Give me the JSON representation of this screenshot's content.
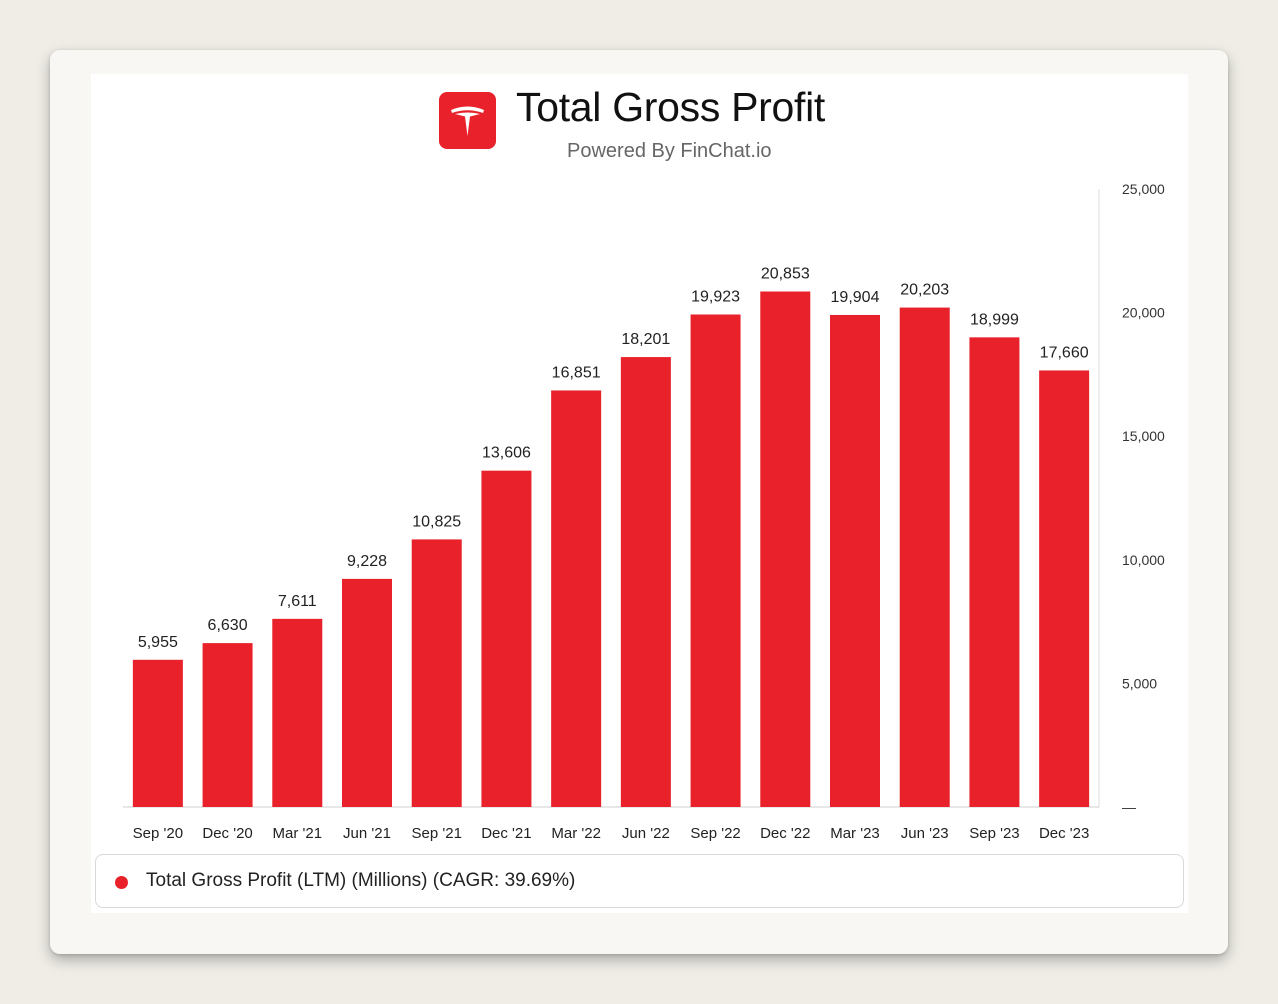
{
  "header": {
    "logo_icon": "tesla-logo-icon",
    "title": "Total Gross Profit",
    "subtitle": "Powered By FinChat.io"
  },
  "legend": {
    "label": "Total Gross Profit (LTM) (Millions) (CAGR: 39.69%)",
    "color": "#e8212a"
  },
  "chart_data": {
    "type": "bar",
    "title": "Total Gross Profit",
    "subtitle": "Powered By FinChat.io",
    "categories": [
      "Sep '20",
      "Dec '20",
      "Mar '21",
      "Jun '21",
      "Sep '21",
      "Dec '21",
      "Mar '22",
      "Jun '22",
      "Sep '22",
      "Dec '22",
      "Mar '23",
      "Jun '23",
      "Sep '23",
      "Dec '23"
    ],
    "series": [
      {
        "name": "Total Gross Profit (LTM) (Millions) (CAGR: 39.69%)",
        "values": [
          5955,
          6630,
          7611,
          9228,
          10825,
          13606,
          16851,
          18201,
          19923,
          20853,
          19904,
          20203,
          18999,
          17660
        ],
        "data_labels": [
          "5,955",
          "6,630",
          "7,611",
          "9,228",
          "10,825",
          "13,606",
          "16,851",
          "18,201",
          "19,923",
          "20,853",
          "19,904",
          "20,203",
          "18,999",
          "17,660"
        ],
        "color": "#e8212a"
      }
    ],
    "ylim": [
      0,
      25000
    ],
    "yticks": [
      0,
      5000,
      10000,
      15000,
      20000,
      25000
    ],
    "ytick_labels": [
      "—",
      "5,000",
      "10,000",
      "15,000",
      "20,000",
      "25,000"
    ],
    "y_axis_side": "right",
    "grid": false,
    "legend_position": "bottom"
  }
}
